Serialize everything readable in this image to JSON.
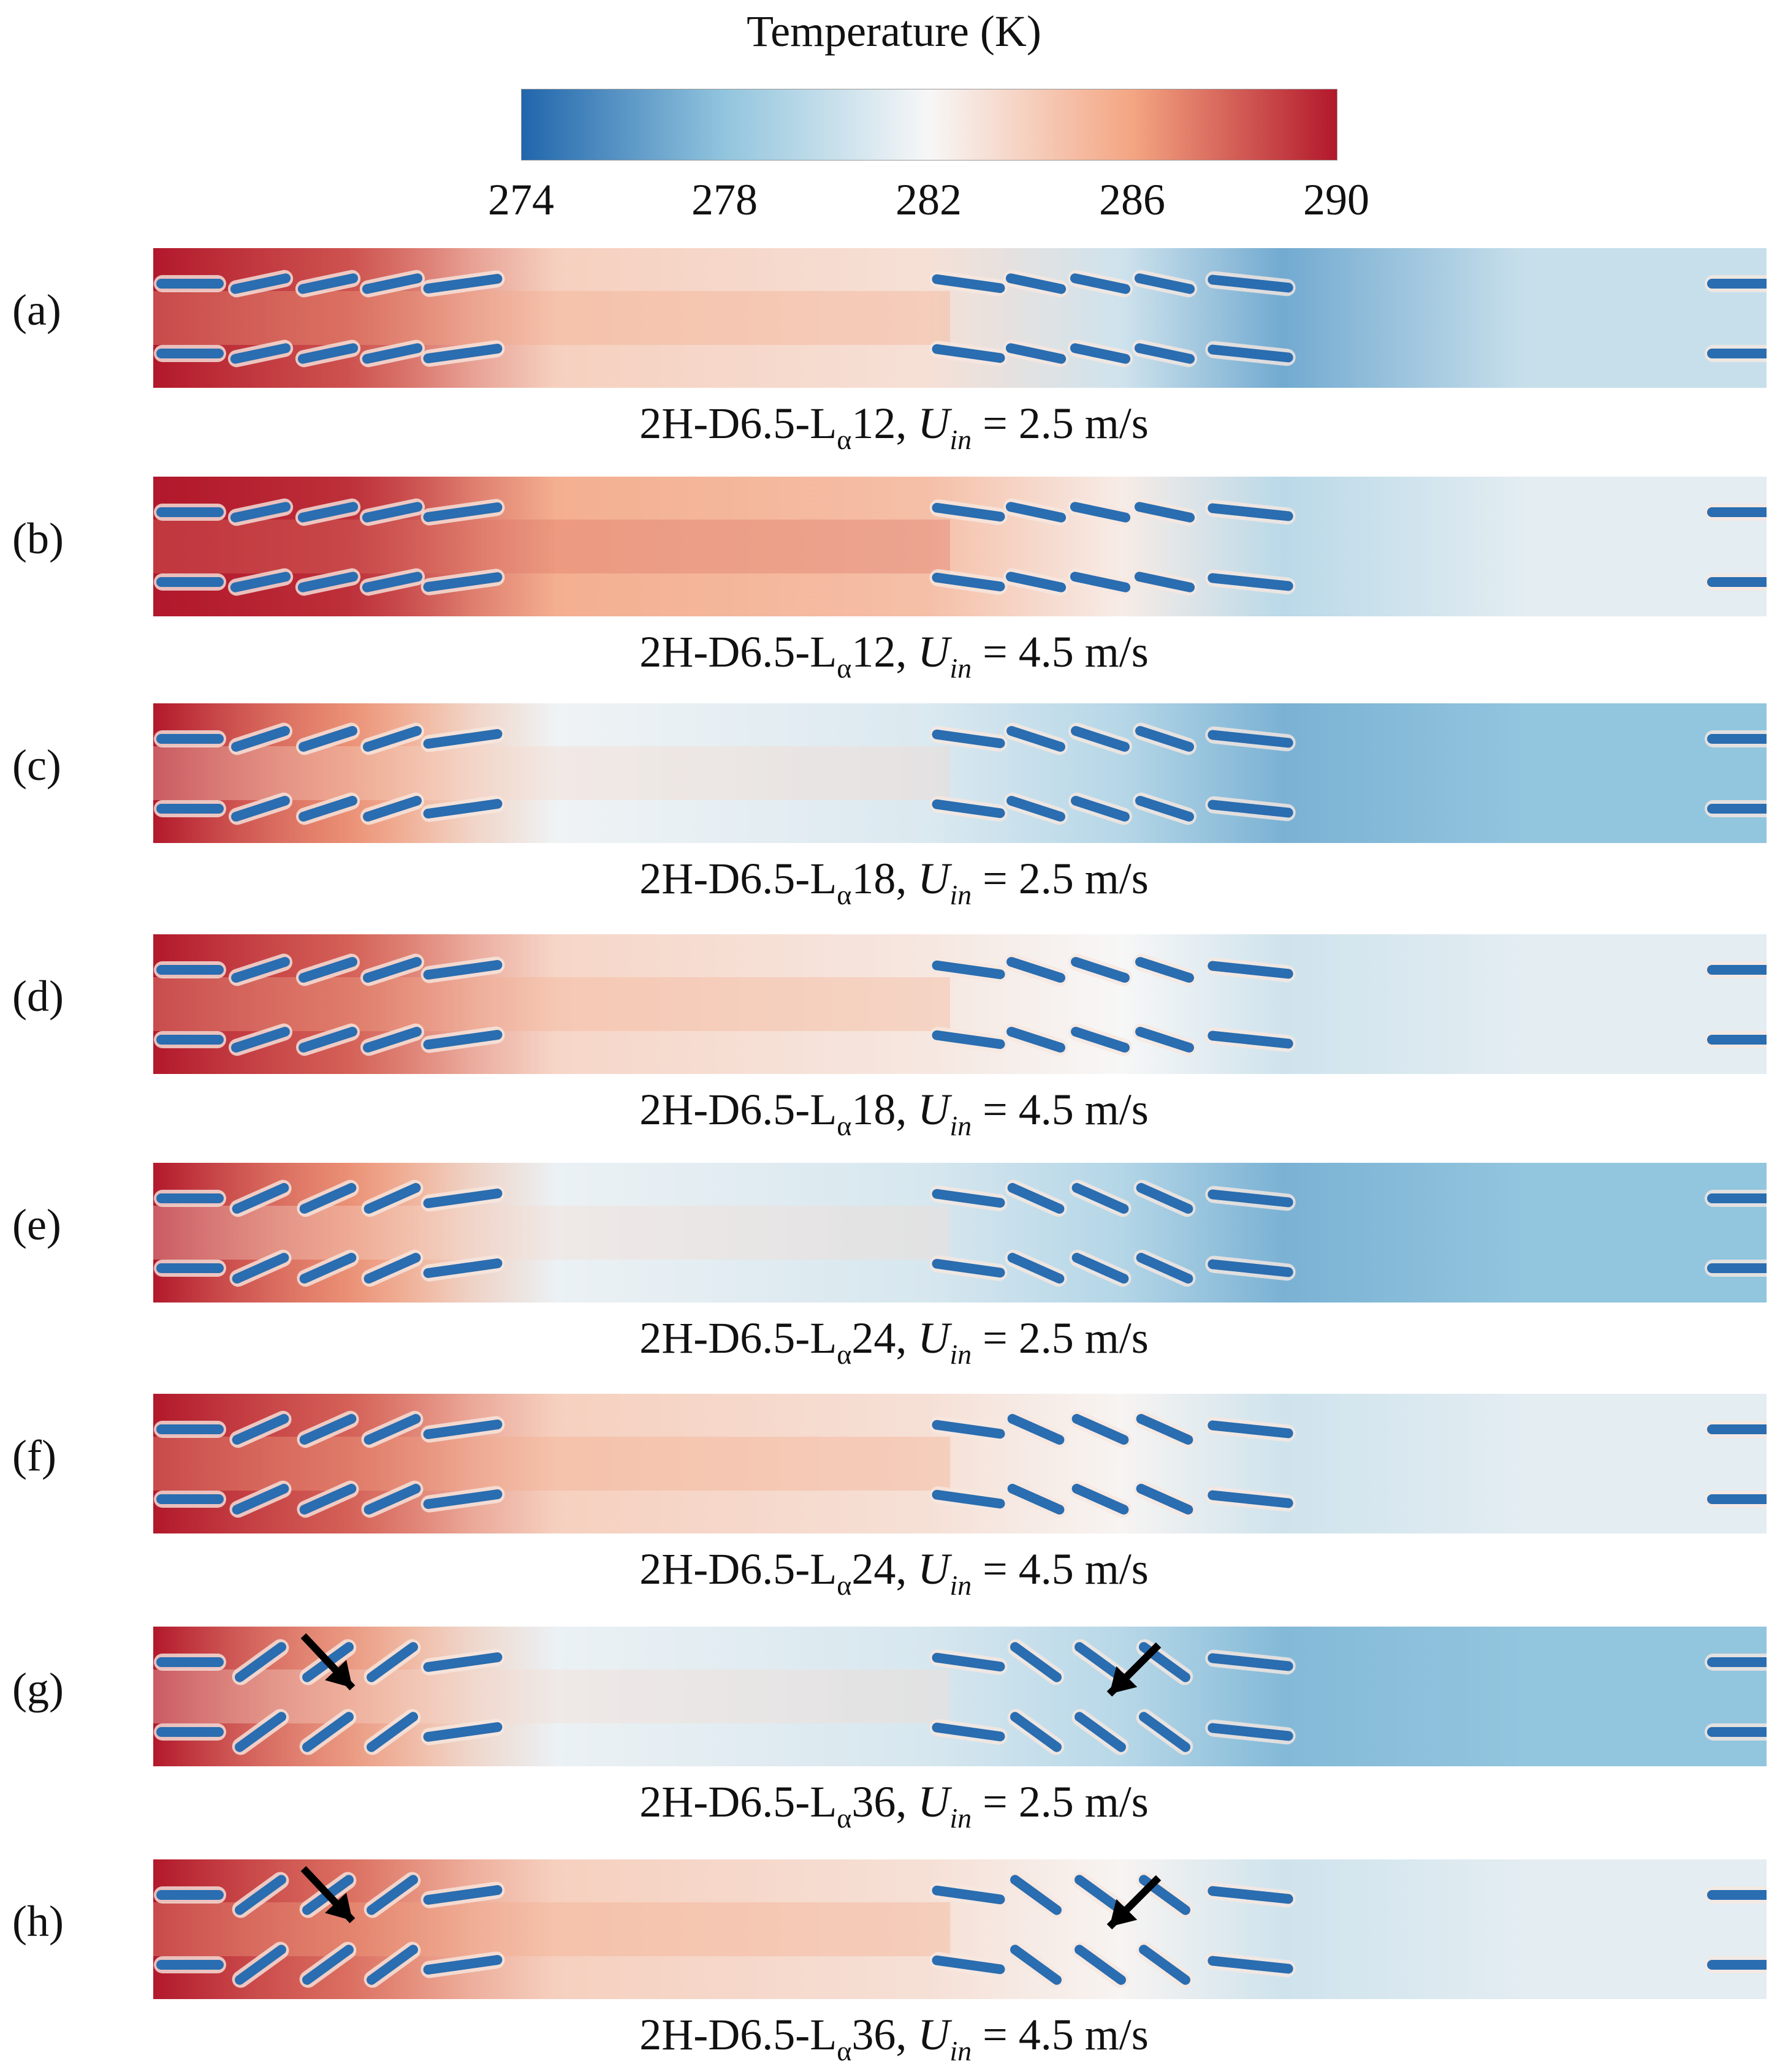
{
  "colorbar": {
    "title": "Temperature (K)",
    "ticks": [
      "274",
      "278",
      "282",
      "286",
      "290"
    ],
    "range": [
      274,
      290
    ],
    "colors": [
      "#2166ac",
      "#92c5de",
      "#f7f7f7",
      "#f4a582",
      "#b2182b"
    ]
  },
  "panels": [
    {
      "letter": "(a)",
      "code": "2H-D6.5-L",
      "sub": "α",
      "length": "12",
      "sep": ", ",
      "var": "U",
      "var_sub": "in",
      "value": " = 2.5 m/s",
      "front_warm": 0.88,
      "mid_warm": 0.62,
      "back_cool": 0.18,
      "tail_cool": 0.38,
      "front_angle": 12,
      "back_angle": 12
    },
    {
      "letter": "(b)",
      "code": "2H-D6.5-L",
      "sub": "α",
      "length": "12",
      "sep": ", ",
      "var": "U",
      "var_sub": "in",
      "value": " = 4.5 m/s",
      "front_warm": 0.95,
      "mid_warm": 0.72,
      "back_cool": 0.35,
      "tail_cool": 0.45,
      "front_angle": 12,
      "back_angle": 12
    },
    {
      "letter": "(c)",
      "code": "2H-D6.5-L",
      "sub": "α",
      "length": "18",
      "sep": ", ",
      "var": "U",
      "var_sub": "in",
      "value": " = 2.5 m/s",
      "front_warm": 0.75,
      "mid_warm": 0.48,
      "back_cool": 0.2,
      "tail_cool": 0.25,
      "front_angle": 18,
      "back_angle": 18
    },
    {
      "letter": "(d)",
      "code": "2H-D6.5-L",
      "sub": "α",
      "length": "18",
      "sep": ", ",
      "var": "U",
      "var_sub": "in",
      "value": " = 4.5 m/s",
      "front_warm": 0.85,
      "mid_warm": 0.6,
      "back_cool": 0.4,
      "tail_cool": 0.45,
      "front_angle": 18,
      "back_angle": 18
    },
    {
      "letter": "(e)",
      "code": "2H-D6.5-L",
      "sub": "α",
      "length": "24",
      "sep": ", ",
      "var": "U",
      "var_sub": "in",
      "value": " = 2.5 m/s",
      "front_warm": 0.75,
      "mid_warm": 0.47,
      "back_cool": 0.2,
      "tail_cool": 0.25,
      "front_angle": 24,
      "back_angle": 24
    },
    {
      "letter": "(f)",
      "code": "2H-D6.5-L",
      "sub": "α",
      "length": "24",
      "sep": ", ",
      "var": "U",
      "var_sub": "in",
      "value": " = 4.5 m/s",
      "front_warm": 0.85,
      "mid_warm": 0.62,
      "back_cool": 0.4,
      "tail_cool": 0.45,
      "front_angle": 24,
      "back_angle": 24
    },
    {
      "letter": "(g)",
      "code": "2H-D6.5-L",
      "sub": "α",
      "length": "36",
      "sep": ", ",
      "var": "U",
      "var_sub": "in",
      "value": " = 2.5 m/s",
      "front_warm": 0.72,
      "mid_warm": 0.47,
      "back_cool": 0.22,
      "tail_cool": 0.25,
      "front_angle": 36,
      "back_angle": 36,
      "arrows": true
    },
    {
      "letter": "(h)",
      "code": "2H-D6.5-L",
      "sub": "α",
      "length": "36",
      "sep": ", ",
      "var": "U",
      "var_sub": "in",
      "value": " = 4.5 m/s",
      "front_warm": 0.82,
      "mid_warm": 0.62,
      "back_cool": 0.4,
      "tail_cool": 0.45,
      "front_angle": 36,
      "back_angle": 36,
      "arrows": true
    }
  ]
}
